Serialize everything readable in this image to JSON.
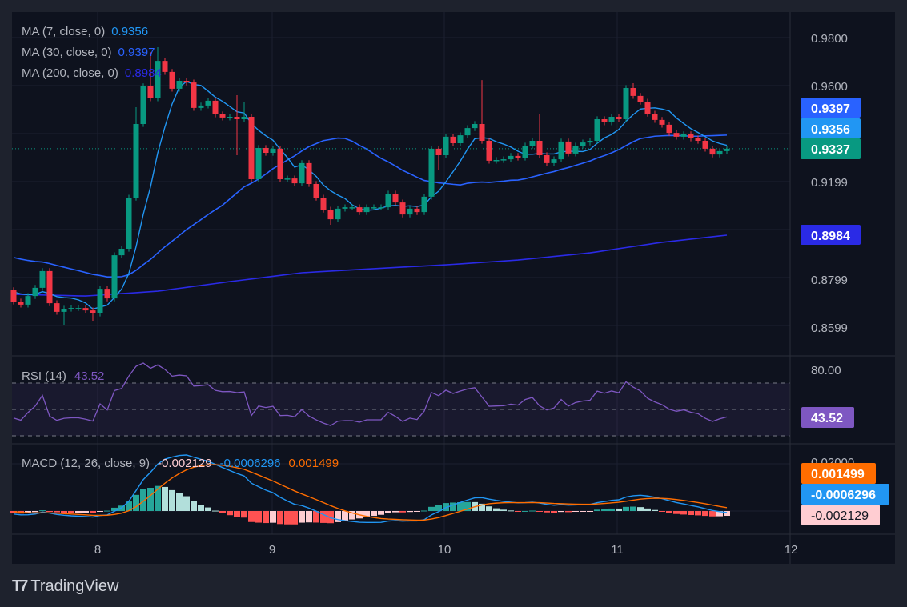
{
  "legend": {
    "ma7_label": "MA (7, close, 0)",
    "ma7_value": "0.9356",
    "ma30_label": "MA (30, close, 0)",
    "ma30_value": "0.9397",
    "ma200_label": "MA (200, close, 0)",
    "ma200_value": "0.8984",
    "rsi_label": "RSI (14)",
    "rsi_value": "43.52",
    "macd_label": "MACD (12, 26, close, 9)",
    "macd_hist_value": "-0.002129",
    "macd_value": "-0.0006296",
    "macd_signal_value": "0.001499"
  },
  "price_axis": [
    "0.9800",
    "0.9600",
    "0.9199",
    "0.8799",
    "0.8599"
  ],
  "price_tags": {
    "ma30": "0.9397",
    "ma7": "0.9356",
    "last": "0.9337",
    "ma200": "0.8984"
  },
  "rsi_axis": "80.00",
  "rsi_tag": "43.52",
  "macd_axis": "0.02000",
  "macd_tags": {
    "signal": "0.001499",
    "macd": "-0.0006296",
    "hist": "-0.002129"
  },
  "time_axis": [
    "8",
    "9",
    "10",
    "11",
    "12"
  ],
  "brand": "TradingView",
  "colors": {
    "up": "#089981",
    "down": "#f23645",
    "ma7": "#2196f3",
    "ma30": "#2962ff",
    "ma200": "#2a2ae6",
    "rsi": "#7e57c2",
    "macd": "#2196f3",
    "signal": "#ff6d00"
  },
  "chart_data": {
    "type": "candlestick",
    "timeframe_note": "hourly candles, days 8 to 12",
    "x_ticks": [
      "8",
      "9",
      "10",
      "11",
      "12"
    ],
    "y_ticks": [
      0.98,
      0.96,
      0.9199,
      0.8799,
      0.8599
    ],
    "ylim": [
      0.853,
      0.993
    ],
    "first_open": 0.8747,
    "closes": [
      0.87,
      0.8687,
      0.8723,
      0.8757,
      0.8827,
      0.8693,
      0.8657,
      0.867,
      0.8673,
      0.8673,
      0.8663,
      0.865,
      0.8753,
      0.8713,
      0.8893,
      0.892,
      0.9133,
      0.944,
      0.9597,
      0.9547,
      0.9703,
      0.9657,
      0.9587,
      0.962,
      0.9613,
      0.9507,
      0.9517,
      0.9537,
      0.948,
      0.9467,
      0.947,
      0.946,
      0.947,
      0.921,
      0.934,
      0.932,
      0.9337,
      0.921,
      0.9213,
      0.9193,
      0.9277,
      0.919,
      0.9133,
      0.9083,
      0.9043,
      0.9087,
      0.9093,
      0.9093,
      0.9073,
      0.9093,
      0.9093,
      0.9093,
      0.915,
      0.9113,
      0.9063,
      0.9087,
      0.9073,
      0.9137,
      0.9337,
      0.931,
      0.9387,
      0.936,
      0.9393,
      0.9423,
      0.944,
      0.937,
      0.9287,
      0.929,
      0.9293,
      0.9307,
      0.93,
      0.935,
      0.937,
      0.931,
      0.9277,
      0.9293,
      0.9367,
      0.9317,
      0.935,
      0.9363,
      0.937,
      0.946,
      0.9447,
      0.947,
      0.946,
      0.959,
      0.9557,
      0.9533,
      0.9483,
      0.9457,
      0.9437,
      0.9403,
      0.9387,
      0.9397,
      0.938,
      0.937,
      0.9337,
      0.9313,
      0.9327,
      0.9337
    ],
    "wick_highs": {
      "17": 0.951,
      "19": 0.974,
      "20": 0.976,
      "31": 0.956,
      "32": 0.953,
      "65": 0.9623,
      "73": 0.948,
      "86": 0.961
    },
    "wick_lows": {
      "7": 0.86,
      "11": 0.862,
      "31": 0.931,
      "44": 0.902,
      "59": 0.925
    },
    "ma200": [
      0.873,
      0.8723,
      0.8743,
      0.8783,
      0.882,
      0.8837,
      0.8853,
      0.8873,
      0.8903,
      0.8947,
      0.898
    ],
    "ma_prior_fill": 0.889,
    "rsi_levels": [
      70,
      50,
      30
    ],
    "rsi_last": 43.52,
    "macd": {
      "fast": 12,
      "slow": 26,
      "signal": 9,
      "last_hist": -0.002129,
      "last_macd": -0.0006296,
      "last_signal": 0.001499
    }
  }
}
